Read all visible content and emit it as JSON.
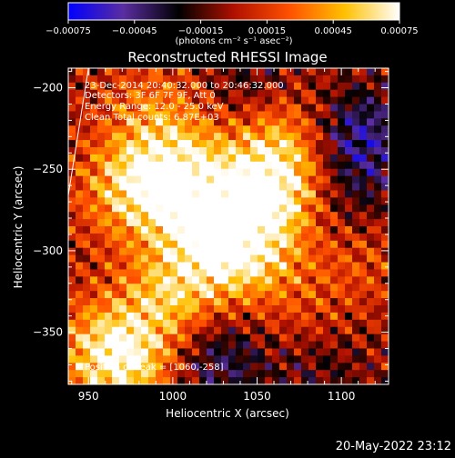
{
  "chart_data": {
    "type": "heatmap",
    "title": "Reconstructed RHESSI Image",
    "xlabel": "Heliocentric X (arcsec)",
    "ylabel": "Heliocentric Y (arcsec)",
    "xlim": [
      938,
      1128
    ],
    "ylim": [
      -382,
      -188
    ],
    "x_ticks": [
      950,
      1000,
      1050,
      1100
    ],
    "x_tick_labels": [
      "950",
      "1000",
      "1050",
      "1100"
    ],
    "y_ticks": [
      -200,
      -250,
      -300,
      -350
    ],
    "y_tick_labels": [
      "−200",
      "−250",
      "−300",
      "−350"
    ],
    "colorbar": {
      "range": [
        -0.00075,
        0.00075
      ],
      "ticks": [
        -0.00075,
        -0.00045,
        -0.00015,
        0.00015,
        0.00045,
        0.00075
      ],
      "tick_labels": [
        "−0.00075",
        "−0.00045",
        "−0.00015",
        "0.00015",
        "0.00045",
        "0.00075"
      ],
      "label": "(photons cm⁻² s⁻¹ asec⁻²)",
      "colors": [
        "#0000ff",
        "#5a2da0",
        "#000000",
        "#b01000",
        "#ff5000",
        "#ffc000",
        "#ffffff"
      ]
    },
    "annotations": [
      "23-Dec-2014 20:40:32.000 to 20:46:32.000",
      "Detectors: 3F 6F 7F 9F, Att 0",
      "Energy Range: 12.0 - 25.0 keV",
      "Clean     Total counts: 6.87E+03"
    ],
    "peak_label": "Position of Peak = [1060,-258]",
    "peak": [
      1060,
      -258
    ],
    "limb_line": [
      [
        938,
        -266
      ],
      [
        950,
        -188
      ]
    ],
    "hot_spots": [
      {
        "x": 1060,
        "y": -258,
        "value": 0.00075
      },
      {
        "x": 1005,
        "y": -255,
        "value": 0.0006
      },
      {
        "x": 975,
        "y": -262,
        "value": 0.0005
      },
      {
        "x": 1045,
        "y": -300,
        "value": 0.00055
      },
      {
        "x": 1000,
        "y": -330,
        "value": 0.0005
      },
      {
        "x": 960,
        "y": -360,
        "value": 0.00045
      },
      {
        "x": 975,
        "y": -372,
        "value": 0.0004
      },
      {
        "x": 1020,
        "y": -290,
        "value": 0.00045
      },
      {
        "x": 1080,
        "y": -350,
        "value": 0.0003
      },
      {
        "x": 990,
        "y": -215,
        "value": 0.0003
      },
      {
        "x": 1110,
        "y": -300,
        "value": 0.00025
      },
      {
        "x": 1065,
        "y": -220,
        "value": 0.00035
      }
    ],
    "cold_spots": [
      {
        "x": 1110,
        "y": -230,
        "value": -0.0005
      },
      {
        "x": 1025,
        "y": -365,
        "value": -0.0004
      },
      {
        "x": 1085,
        "y": -365,
        "value": -0.00035
      },
      {
        "x": 1105,
        "y": -275,
        "value": -0.00025
      },
      {
        "x": 1050,
        "y": -200,
        "value": -0.0003
      }
    ]
  },
  "timestamp": "20-May-2022 23:12"
}
